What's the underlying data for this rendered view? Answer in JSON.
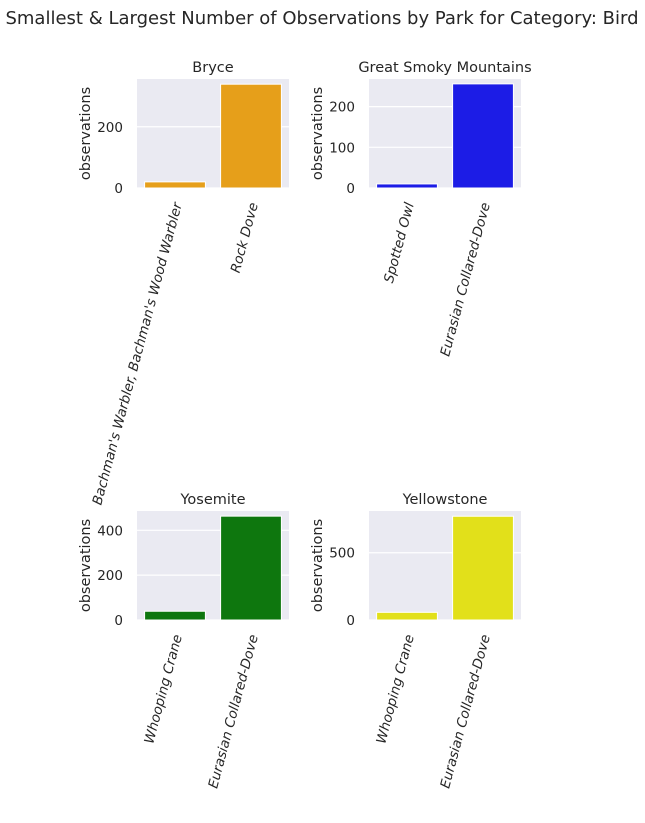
{
  "figure": {
    "title": "Smallest & Largest Number of Observations by Park for Category: Bird"
  },
  "chart_data": [
    {
      "type": "bar",
      "title": "Bryce",
      "xlabel": "",
      "ylabel": "observations",
      "categories": [
        "Bachman's Warbler, Bachman's Wood Warbler",
        "Rock Dove"
      ],
      "values": [
        20,
        339
      ],
      "color": "#e69f1a",
      "ylim": [
        0,
        356
      ],
      "yticks": [
        0,
        200
      ],
      "grid": true
    },
    {
      "type": "bar",
      "title": "Great Smoky Mountains",
      "xlabel": "",
      "ylabel": "observations",
      "categories": [
        "Spotted Owl",
        "Eurasian Collared-Dove"
      ],
      "values": [
        10,
        256
      ],
      "color": "#1c1ce6",
      "ylim": [
        0,
        268
      ],
      "yticks": [
        0,
        100,
        200
      ],
      "grid": true
    },
    {
      "type": "bar",
      "title": "Yosemite",
      "xlabel": "",
      "ylabel": "observations",
      "categories": [
        "Whooping Crane",
        "Eurasian Collared-Dove"
      ],
      "values": [
        39,
        463
      ],
      "color": "#0e770e",
      "ylim": [
        0,
        486
      ],
      "yticks": [
        0,
        200,
        400
      ],
      "grid": true
    },
    {
      "type": "bar",
      "title": "Yellowstone",
      "xlabel": "",
      "ylabel": "observations",
      "categories": [
        "Whooping Crane",
        "Eurasian Collared-Dove"
      ],
      "values": [
        57,
        771
      ],
      "color": "#e2e01a",
      "ylim": [
        0,
        810
      ],
      "yticks": [
        0,
        500
      ],
      "grid": true
    }
  ]
}
